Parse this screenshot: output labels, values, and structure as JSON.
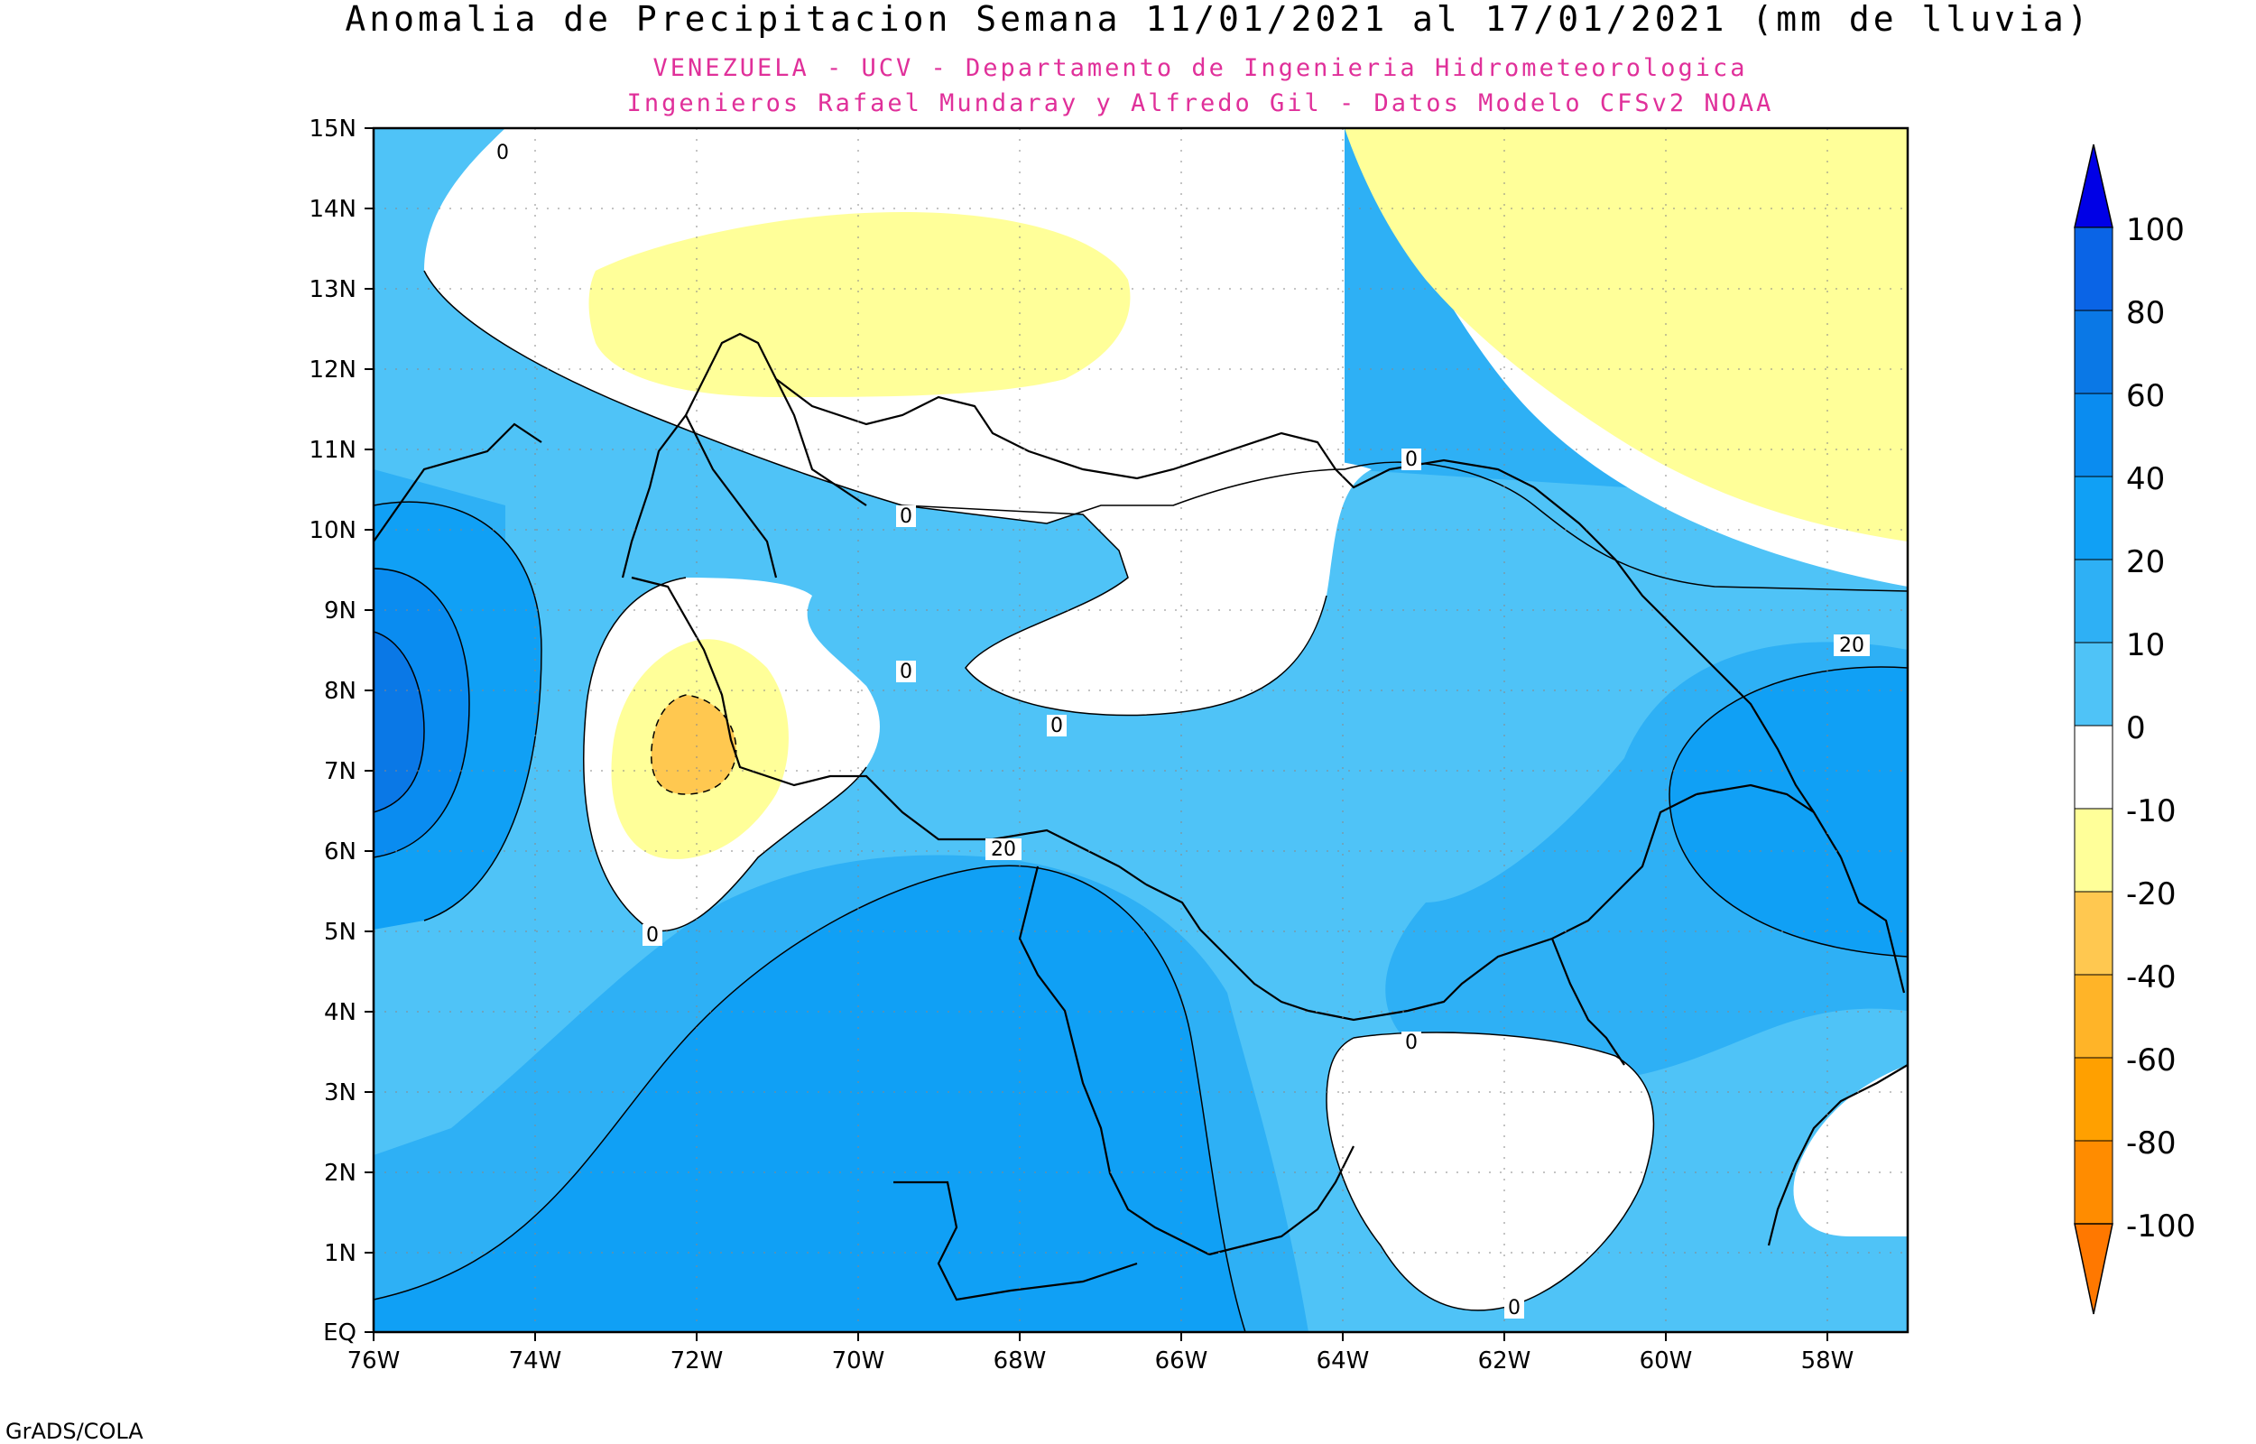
{
  "title": "Anomalia de Precipitacion Semana 11/01/2021 al 17/01/2021 (mm de lluvia)",
  "subtitle_1": "VENEZUELA - UCV - Departamento de Ingenieria Hidrometeorologica",
  "subtitle_2": "Ingenieros Rafael Mundaray y Alfredo Gil - Datos Modelo CFSv2 NOAA",
  "footer": "GrADS/COLA",
  "colors": {
    "subtitle": "#e0309a",
    "pos_100": "#0000e6",
    "pos_80": "#0a64e6",
    "pos_60": "#0a78e6",
    "pos_40": "#0a8cf0",
    "pos_20": "#10a0f5",
    "pos_10": "#2eb0f5",
    "pos_0": "#4fc3f7",
    "neg_0": "#ffffff",
    "neg_10": "#ffff99",
    "neg_20": "#ffc850",
    "neg_40": "#ffb428",
    "neg_60": "#ffa000",
    "neg_80": "#ff8c00",
    "neg_100": "#ff7800"
  },
  "map": {
    "lat_labels": [
      "15N",
      "14N",
      "13N",
      "12N",
      "11N",
      "10N",
      "9N",
      "8N",
      "7N",
      "6N",
      "5N",
      "4N",
      "3N",
      "2N",
      "1N",
      "EQ"
    ],
    "lon_labels": [
      "76W",
      "74W",
      "72W",
      "70W",
      "68W",
      "66W",
      "64W",
      "62W",
      "60W",
      "58W"
    ],
    "contour_labels": [
      "0",
      "0",
      "0",
      "0",
      "0",
      "0",
      "0",
      "0",
      "20",
      "20"
    ]
  },
  "colorbar": {
    "labels": [
      "100",
      "80",
      "60",
      "40",
      "20",
      "10",
      "0",
      "-10",
      "-20",
      "-40",
      "-60",
      "-80",
      "-100"
    ]
  }
}
